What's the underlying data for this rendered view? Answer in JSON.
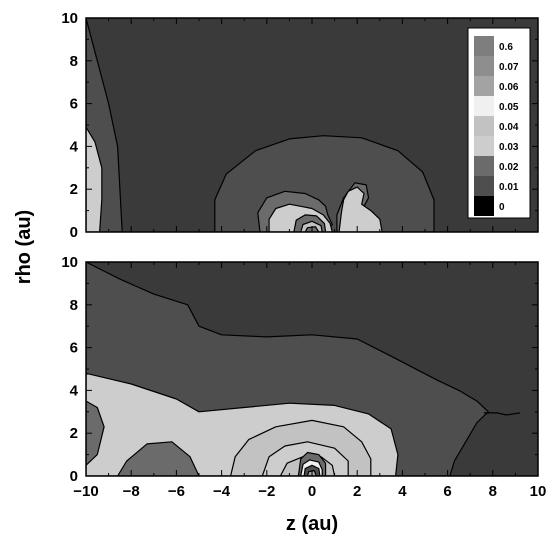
{
  "chart_data": {
    "type": "contour",
    "xlabel": "z (au)",
    "ylabel": "rho (au)",
    "xlim": [
      -10,
      10
    ],
    "ylim": [
      0,
      10
    ],
    "x_ticks": [
      "−10",
      "−8",
      "−6",
      "−4",
      "−2",
      "0",
      "2",
      "4",
      "6",
      "8",
      "10"
    ],
    "y_ticks": [
      "0",
      "2",
      "4",
      "6",
      "8",
      "10"
    ],
    "legend": {
      "placement": "top-right of upper panel",
      "levels": [
        {
          "label": "0.6",
          "color": "#7e7e7e"
        },
        {
          "label": "0.07",
          "color": "#8e8e8e"
        },
        {
          "label": "0.06",
          "color": "#a3a3a3"
        },
        {
          "label": "0.05",
          "color": "#f0f0f0"
        },
        {
          "label": "0.04",
          "color": "#c2c2c2"
        },
        {
          "label": "0.03",
          "color": "#cdcdcd"
        },
        {
          "label": "0.02",
          "color": "#6b6b6b"
        },
        {
          "label": "0.01",
          "color": "#4e4e4e"
        },
        {
          "label": "0",
          "color": "#000000"
        }
      ]
    },
    "panels": [
      {
        "name": "upper",
        "regions": [
          {
            "level": "0.01",
            "points": [
              [
                -10,
                10
              ],
              [
                -9.5,
                8
              ],
              [
                -9,
                6
              ],
              [
                -8.6,
                4
              ],
              [
                -8.5,
                2
              ],
              [
                -8.4,
                0
              ],
              [
                -10,
                0
              ]
            ]
          },
          {
            "level": "0.03",
            "points": [
              [
                -10,
                4.9
              ],
              [
                -9.6,
                4.2
              ],
              [
                -9.3,
                3
              ],
              [
                -9.3,
                1.5
              ],
              [
                -9.4,
                0
              ],
              [
                -10,
                0
              ]
            ]
          },
          {
            "level": "0.01",
            "points": [
              [
                -4.3,
                0
              ],
              [
                -4.3,
                1.5
              ],
              [
                -3.8,
                2.7
              ],
              [
                -2.5,
                3.8
              ],
              [
                -1,
                4.35
              ],
              [
                0.5,
                4.5
              ],
              [
                2.2,
                4.4
              ],
              [
                3.8,
                3.8
              ],
              [
                4.9,
                2.8
              ],
              [
                5.4,
                1.5
              ],
              [
                5.4,
                0
              ]
            ]
          },
          {
            "level": "0.02",
            "points": [
              [
                -2.3,
                0
              ],
              [
                -2.4,
                0.9
              ],
              [
                -2,
                1.6
              ],
              [
                -1.2,
                1.9
              ],
              [
                -0.3,
                1.8
              ],
              [
                0.3,
                1.5
              ],
              [
                0.6,
                1.2
              ],
              [
                0.7,
                0.8
              ],
              [
                0.9,
                0.35
              ],
              [
                0.6,
                0
              ],
              [
                3,
                0
              ],
              [
                2.8,
                0.5
              ],
              [
                2.2,
                1
              ],
              [
                2.5,
                1.6
              ],
              [
                2.4,
                2.2
              ],
              [
                1.9,
                2.3
              ],
              [
                1.4,
                1.6
              ],
              [
                1.1,
                0.8
              ],
              [
                1.1,
                0
              ]
            ]
          },
          {
            "level": "0.03",
            "points": [
              [
                -1.9,
                0
              ],
              [
                -1.9,
                0.6
              ],
              [
                -1.6,
                1.1
              ],
              [
                -1,
                1.3
              ],
              [
                -0.5,
                1.2
              ],
              [
                0,
                1.1
              ],
              [
                0.5,
                0.8
              ],
              [
                0.8,
                0.4
              ],
              [
                0.9,
                0
              ]
            ]
          },
          {
            "level": "0.03",
            "points": [
              [
                1.2,
                0
              ],
              [
                1.3,
                0.9
              ],
              [
                1.4,
                1.5
              ],
              [
                1.6,
                1.9
              ],
              [
                2.0,
                2.1
              ],
              [
                2.3,
                1.8
              ],
              [
                2.2,
                1.3
              ],
              [
                2.6,
                1.0
              ],
              [
                3.0,
                0.6
              ],
              [
                3.1,
                0
              ]
            ]
          },
          {
            "level": "0.02",
            "points": [
              [
                -0.8,
                0
              ],
              [
                -0.7,
                0.55
              ],
              [
                -0.3,
                0.8
              ],
              [
                0.2,
                0.75
              ],
              [
                0.55,
                0.4
              ],
              [
                0.6,
                0
              ]
            ]
          },
          {
            "level": "0.04",
            "points": [
              [
                -0.5,
                0
              ],
              [
                -0.4,
                0.35
              ],
              [
                0,
                0.5
              ],
              [
                0.4,
                0.3
              ],
              [
                0.45,
                0
              ]
            ]
          },
          {
            "level": "0.02",
            "points": [
              [
                -0.3,
                0
              ],
              [
                -0.2,
                0.2
              ],
              [
                0.15,
                0.25
              ],
              [
                0.3,
                0
              ]
            ]
          }
        ]
      },
      {
        "name": "lower",
        "regions": [
          {
            "level": "0.01",
            "points": [
              [
                -10,
                10
              ],
              [
                -8.5,
                9.2
              ],
              [
                -7,
                8.5
              ],
              [
                -5.5,
                8
              ],
              [
                -5,
                7
              ],
              [
                -4,
                6.6
              ],
              [
                -2,
                6.5
              ],
              [
                0,
                6.6
              ],
              [
                2,
                6.4
              ],
              [
                3.5,
                5.6
              ],
              [
                5.5,
                4.5
              ],
              [
                6.5,
                4
              ],
              [
                7.3,
                3.5
              ],
              [
                7.8,
                3
              ],
              [
                7.3,
                2.5
              ],
              [
                6.8,
                1.6
              ],
              [
                6.3,
                0.7
              ],
              [
                6.1,
                0
              ],
              [
                -10,
                0
              ]
            ]
          },
          {
            "level": "0.03",
            "points": [
              [
                -10,
                4.8
              ],
              [
                -8,
                4.3
              ],
              [
                -6,
                3.6
              ],
              [
                -5,
                3
              ],
              [
                -3,
                3.2
              ],
              [
                -1,
                3.4
              ],
              [
                1,
                3.3
              ],
              [
                2.5,
                2.9
              ],
              [
                3.5,
                2.2
              ],
              [
                3.8,
                1
              ],
              [
                3.7,
                0
              ],
              [
                -10,
                0
              ]
            ]
          },
          {
            "level": "0.02",
            "points": [
              [
                -10,
                3.5
              ],
              [
                -9.5,
                3.2
              ],
              [
                -9.2,
                2.3
              ],
              [
                -9.5,
                1
              ],
              [
                -10,
                0.5
              ]
            ]
          },
          {
            "level": "0.02",
            "points": [
              [
                -8.6,
                0
              ],
              [
                -8.2,
                0.7
              ],
              [
                -7.3,
                1.5
              ],
              [
                -6.2,
                1.6
              ],
              [
                -5.4,
                0.9
              ],
              [
                -5.0,
                0
              ]
            ]
          },
          {
            "level": "0.04",
            "points": [
              [
                -3.6,
                0
              ],
              [
                -3.4,
                0.9
              ],
              [
                -2.8,
                1.7
              ],
              [
                -1.6,
                2.3
              ],
              [
                0,
                2.6
              ],
              [
                1.4,
                2.3
              ],
              [
                2.2,
                1.6
              ],
              [
                2.6,
                0.8
              ],
              [
                2.6,
                0
              ]
            ]
          },
          {
            "level": "0.03",
            "points": [
              [
                -2.2,
                0
              ],
              [
                -1.9,
                0.9
              ],
              [
                -1.2,
                1.4
              ],
              [
                -0.2,
                1.6
              ],
              [
                1,
                1.3
              ],
              [
                1.6,
                0.7
              ],
              [
                1.6,
                0
              ]
            ]
          },
          {
            "level": "0.04",
            "points": [
              [
                -1.4,
                0
              ],
              [
                -1.1,
                0.6
              ],
              [
                -0.4,
                0.9
              ],
              [
                0.4,
                0.9
              ],
              [
                0.9,
                0.5
              ],
              [
                1,
                0
              ]
            ]
          },
          {
            "level": "0.02",
            "points": [
              [
                -0.6,
                0
              ],
              [
                -0.5,
                0.8
              ],
              [
                -0.2,
                1.1
              ],
              [
                0.3,
                1.0
              ],
              [
                0.6,
                0.6
              ],
              [
                0.6,
                0
              ]
            ]
          },
          {
            "level": "0.05",
            "points": [
              [
                -0.5,
                0
              ],
              [
                -0.4,
                0.55
              ],
              [
                -0.1,
                0.75
              ],
              [
                0.3,
                0.65
              ],
              [
                0.45,
                0.3
              ],
              [
                0.45,
                0
              ]
            ]
          },
          {
            "level": "0.01",
            "points": [
              [
                -0.35,
                0
              ],
              [
                -0.3,
                0.35
              ],
              [
                0,
                0.5
              ],
              [
                0.3,
                0.35
              ],
              [
                0.35,
                0
              ]
            ]
          },
          {
            "level": "0.06",
            "points": [
              [
                -0.2,
                0
              ],
              [
                -0.15,
                0.2
              ],
              [
                0.1,
                0.25
              ],
              [
                0.2,
                0
              ]
            ]
          }
        ],
        "tail_line": [
          [
            7.6,
            2.95
          ],
          [
            8.2,
            2.95
          ],
          [
            8.6,
            2.85
          ],
          [
            9.2,
            2.95
          ]
        ]
      }
    ]
  }
}
